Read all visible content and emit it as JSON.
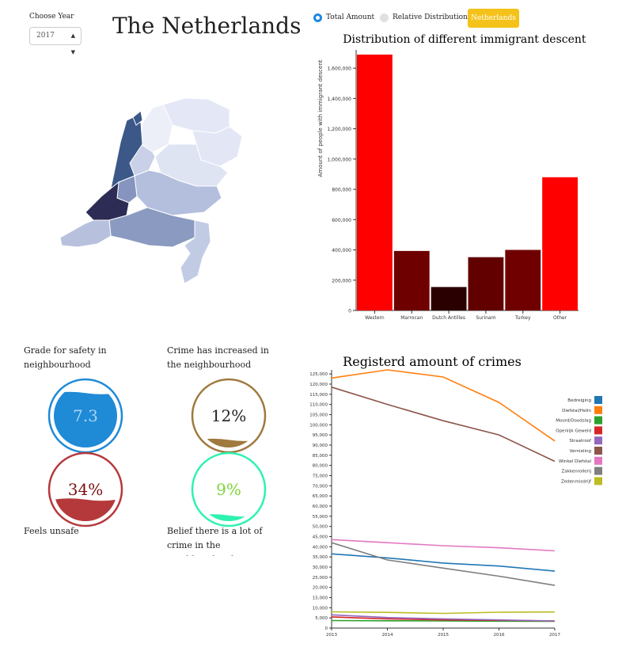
{
  "year_picker": {
    "label": "Choose Year",
    "value": "2017"
  },
  "title": "The Netherlands",
  "mode_toggle": {
    "total": "Total Amount",
    "relative": "Relative Distribution",
    "selected": "total",
    "region_button": "Netherlands"
  },
  "gauges": [
    {
      "label": "Grade for safety in neighbourhood",
      "value_text": "7.3",
      "fill": 0.86,
      "color": "#1f8ad6",
      "text_color": "#a9d6f5"
    },
    {
      "label": "Crime has increased in the neighbourhood",
      "value_text": "12%",
      "fill": 0.12,
      "color": "#a0793f",
      "text_color": "#222222"
    },
    {
      "label": "Feels unsafe",
      "value_text": "34%",
      "fill": 0.34,
      "color": "#b5393b",
      "text_color": "#7a1010"
    },
    {
      "label": "Belief there is a lot of crime in the neighbourhood",
      "value_text": "9%",
      "fill": 0.09,
      "color": "#2ef2b0",
      "text_color": "#7bd43a"
    }
  ],
  "chart_data": [
    {
      "type": "bar",
      "title": "Distribution of different immigrant descents",
      "xlabel": "",
      "ylabel": "Amount of people with immigrant descent",
      "categories": [
        "Western",
        "Marrocan",
        "Dutch Antilles",
        "Surinam",
        "Turkey",
        "Other"
      ],
      "values": [
        1690000,
        393000,
        155000,
        352000,
        400000,
        880000
      ],
      "bar_colors": [
        "#ff0000",
        "#6e0000",
        "#2a0000",
        "#620000",
        "#700000",
        "#ff0000"
      ],
      "ylim": [
        0,
        1700000
      ],
      "yticks": [
        0,
        200000,
        400000,
        600000,
        800000,
        1000000,
        1200000,
        1400000,
        1600000
      ],
      "ytick_labels": [
        "0",
        "200,000",
        "400,000",
        "600,000",
        "800,000",
        "1,000,000",
        "1,200,000",
        "1,400,000",
        "1,600,000"
      ]
    },
    {
      "type": "line",
      "title": "Registerd amount of crimes",
      "x": [
        2013,
        2014,
        2015,
        2016,
        2017
      ],
      "ylim": [
        0,
        127000
      ],
      "ytick_step": 5000,
      "legend_position": "right",
      "series": [
        {
          "name": "Bedreiging",
          "color": "#1f77b4",
          "values": [
            36500,
            34500,
            32000,
            30500,
            28000
          ]
        },
        {
          "name": "Diefstal/Helin",
          "color": "#ff7f0e",
          "values": [
            123000,
            127000,
            123500,
            111000,
            92000
          ]
        },
        {
          "name": "Moord/Doodslag",
          "color": "#2ca02c",
          "values": [
            3700,
            3600,
            3500,
            3400,
            3300
          ]
        },
        {
          "name": "Openlijk Geweld",
          "color": "#d62728",
          "values": [
            5500,
            4500,
            4000,
            3800,
            3500
          ]
        },
        {
          "name": "Straatroof",
          "color": "#9467bd",
          "values": [
            6500,
            5200,
            4500,
            4000,
            3500
          ]
        },
        {
          "name": "Vernieling",
          "color": "#8c564b",
          "values": [
            118500,
            110000,
            102000,
            95000,
            82000
          ]
        },
        {
          "name": "Winkel Diefstal",
          "color": "#e377c2",
          "values": [
            43500,
            42000,
            40500,
            39500,
            38000
          ]
        },
        {
          "name": "Zakkenrollerij",
          "color": "#7f7f7f",
          "values": [
            42000,
            33500,
            29500,
            25500,
            21000
          ]
        },
        {
          "name": "Zedenmisdrijf",
          "color": "#bcbd22",
          "values": [
            8000,
            7700,
            7200,
            7800,
            7900
          ]
        }
      ]
    }
  ]
}
